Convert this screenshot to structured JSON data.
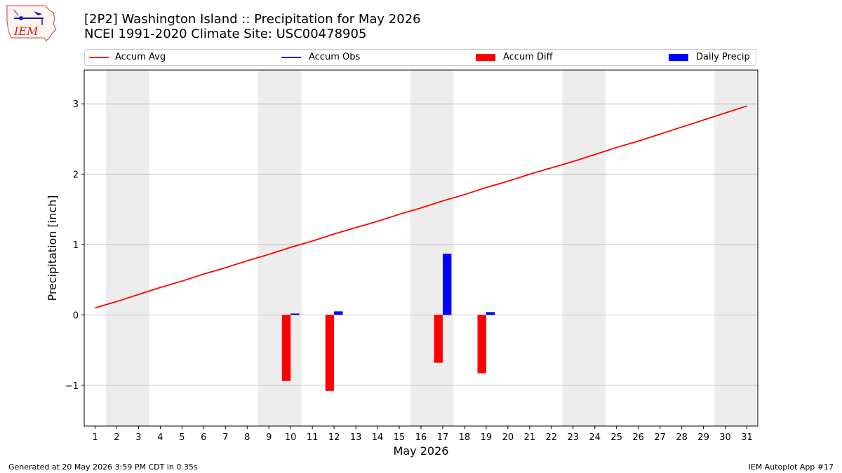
{
  "header": {
    "logo_text": "IEM",
    "title_line1": "[2P2] Washington Island :: Precipitation for May 2026",
    "title_line2": "NCEI 1991-2020 Climate Site: USC00478905"
  },
  "legend": {
    "items": [
      {
        "label": "Accum Avg",
        "kind": "line",
        "color": "#ff0000"
      },
      {
        "label": "Accum Obs",
        "kind": "line",
        "color": "#0000ff"
      },
      {
        "label": "Accum Diff",
        "kind": "bar",
        "color": "#ff0000"
      },
      {
        "label": "Daily Precip",
        "kind": "bar",
        "color": "#0000ff"
      }
    ]
  },
  "footer": {
    "left": "Generated at 20 May 2026 3:59 PM CDT in 0.35s",
    "right": "IEM Autoplot App #17"
  },
  "chart_data": {
    "type": "bar",
    "xlabel": "May 2026",
    "ylabel": "Precipitation [inch]",
    "xlim": [
      0.5,
      31.5
    ],
    "ylim": [
      -1.58,
      3.48
    ],
    "yticks": [
      -1,
      0,
      1,
      2,
      3
    ],
    "ytick_labels": [
      "−1",
      "0",
      "1",
      "2",
      "3"
    ],
    "x": [
      1,
      2,
      3,
      4,
      5,
      6,
      7,
      8,
      9,
      10,
      11,
      12,
      13,
      14,
      15,
      16,
      17,
      18,
      19,
      20,
      21,
      22,
      23,
      24,
      25,
      26,
      27,
      28,
      29,
      30,
      31
    ],
    "weekend_bands": [
      [
        1.5,
        3.5
      ],
      [
        8.5,
        10.5
      ],
      [
        15.5,
        17.5
      ],
      [
        22.5,
        24.5
      ],
      [
        29.5,
        31.5
      ]
    ],
    "grid": "horizontal",
    "series": [
      {
        "name": "Accum Avg",
        "type": "line",
        "color": "#ff0000",
        "values": [
          0.1,
          0.19,
          0.29,
          0.39,
          0.48,
          0.58,
          0.67,
          0.77,
          0.86,
          0.96,
          1.05,
          1.15,
          1.24,
          1.33,
          1.43,
          1.52,
          1.62,
          1.71,
          1.81,
          1.9,
          2.0,
          2.09,
          2.18,
          2.28,
          2.38,
          2.47,
          2.57,
          2.67,
          2.77,
          2.87,
          2.97
        ]
      },
      {
        "name": "Accum Diff",
        "type": "bar",
        "color": "#ff0000",
        "points": [
          {
            "x": 10,
            "value": -0.94
          },
          {
            "x": 12,
            "value": -1.08
          },
          {
            "x": 17,
            "value": -0.68
          },
          {
            "x": 19,
            "value": -0.83
          }
        ]
      },
      {
        "name": "Daily Precip",
        "type": "bar",
        "color": "#0000ff",
        "points": [
          {
            "x": 10,
            "value": 0.02
          },
          {
            "x": 12,
            "value": 0.05
          },
          {
            "x": 17,
            "value": 0.87
          },
          {
            "x": 19,
            "value": 0.04
          }
        ]
      }
    ]
  }
}
